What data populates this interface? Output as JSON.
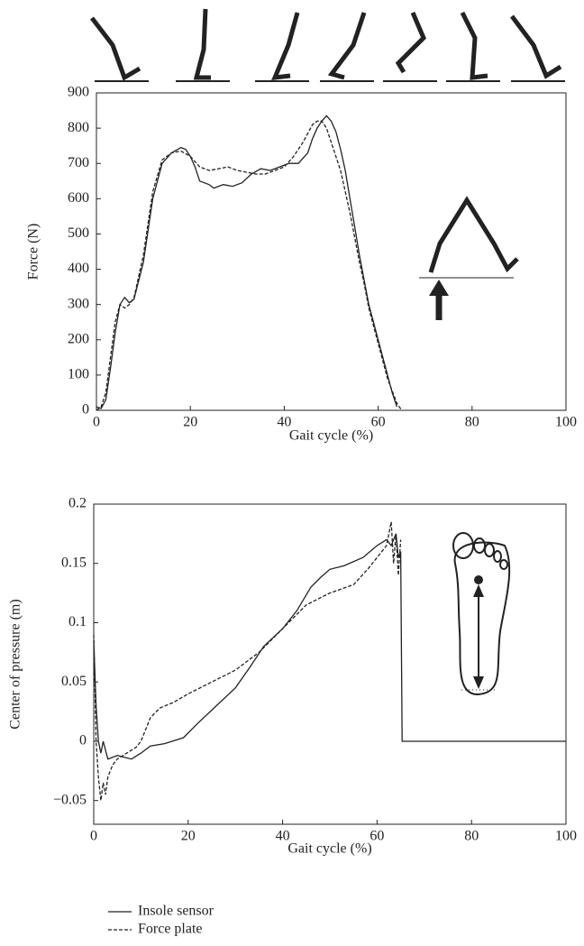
{
  "chart_data": [
    {
      "type": "line",
      "ylabel": "Force (N)",
      "xlabel": "Gait cycle (%)",
      "xlim": [
        0,
        100
      ],
      "xticks": [
        0,
        20,
        40,
        60,
        80,
        100
      ],
      "ylim": [
        0,
        900
      ],
      "yticks": [
        0,
        100,
        200,
        300,
        400,
        500,
        600,
        700,
        800,
        900
      ],
      "series": [
        {
          "color": "#222222",
          "dash": false,
          "x": [
            0,
            1,
            2,
            3,
            4,
            5,
            6,
            7,
            8,
            10,
            12,
            14,
            16,
            18,
            19,
            20,
            21,
            22,
            24,
            25,
            27,
            29,
            31,
            33,
            35,
            37,
            39,
            41,
            43,
            45,
            46,
            47,
            48,
            49,
            50,
            51,
            52,
            53,
            54,
            55,
            56,
            57,
            58,
            60,
            62,
            63,
            64
          ],
          "values": [
            10,
            5,
            30,
            120,
            220,
            300,
            320,
            305,
            315,
            420,
            600,
            700,
            730,
            745,
            740,
            720,
            690,
            650,
            640,
            630,
            640,
            635,
            645,
            670,
            685,
            680,
            690,
            700,
            700,
            730,
            770,
            800,
            820,
            835,
            820,
            790,
            740,
            680,
            600,
            520,
            440,
            370,
            300,
            200,
            100,
            50,
            10
          ]
        },
        {
          "color": "#222222",
          "dash": true,
          "x": [
            0,
            1,
            2,
            3,
            4,
            5,
            6,
            7,
            8,
            10,
            12,
            14,
            16,
            18,
            20,
            22,
            24,
            26,
            28,
            30,
            32,
            34,
            36,
            38,
            40,
            42,
            44,
            46,
            47,
            48,
            49,
            50,
            51,
            52,
            53,
            54,
            55,
            56,
            57,
            58,
            60,
            62,
            64,
            65
          ],
          "values": [
            0,
            10,
            50,
            150,
            250,
            300,
            290,
            300,
            320,
            440,
            620,
            710,
            730,
            735,
            720,
            690,
            680,
            685,
            690,
            680,
            675,
            670,
            670,
            680,
            690,
            720,
            760,
            810,
            820,
            820,
            800,
            760,
            720,
            680,
            620,
            560,
            490,
            420,
            360,
            290,
            190,
            90,
            20,
            0
          ]
        }
      ]
    },
    {
      "type": "line",
      "ylabel": "Center of pressure (m)",
      "xlabel": "Gait cycle (%)",
      "xlim": [
        0,
        100
      ],
      "xticks": [
        0,
        20,
        40,
        60,
        80,
        100
      ],
      "ylim": [
        -0.07,
        0.2
      ],
      "yticks": [
        {
          "value": -0.05,
          "label": "−0.05"
        },
        0,
        0.05,
        0.1,
        0.15,
        0.2
      ],
      "series": [
        {
          "name": "Insole sensor",
          "color": "#222222",
          "dash": false,
          "x": [
            0,
            0.5,
            1,
            1.5,
            2,
            3,
            5,
            8,
            10,
            12,
            15,
            19,
            22,
            26,
            30,
            33,
            36,
            40,
            43,
            46,
            48,
            50,
            53,
            57,
            60,
            62,
            63,
            64,
            64.5,
            65,
            65.3,
            70,
            100
          ],
          "values": [
            0.085,
            0.03,
            0.0,
            -0.01,
            0.0,
            -0.015,
            -0.012,
            -0.015,
            -0.01,
            -0.004,
            -0.002,
            0.003,
            0.015,
            0.03,
            0.045,
            0.062,
            0.08,
            0.095,
            0.11,
            0.13,
            0.138,
            0.145,
            0.148,
            0.155,
            0.165,
            0.17,
            0.165,
            0.175,
            0.155,
            0.16,
            0.0,
            0.0,
            0.0
          ]
        },
        {
          "name": "Force plate",
          "color": "#222222",
          "dash": true,
          "x": [
            0,
            0.5,
            1,
            1.5,
            2,
            2.5,
            3,
            4,
            5,
            7,
            9,
            10,
            12,
            14,
            17,
            20,
            25,
            30,
            35,
            40,
            45,
            50,
            55,
            58,
            60,
            62,
            63,
            63.5,
            64,
            64.5,
            65
          ],
          "values": [
            0.09,
            0.0,
            -0.03,
            -0.05,
            -0.035,
            -0.045,
            -0.03,
            -0.02,
            -0.015,
            -0.01,
            -0.005,
            0.0,
            0.02,
            0.028,
            0.033,
            0.04,
            0.05,
            0.06,
            0.075,
            0.095,
            0.115,
            0.125,
            0.132,
            0.145,
            0.155,
            0.165,
            0.185,
            0.15,
            0.175,
            0.14,
            0.17
          ]
        }
      ]
    }
  ]
}
